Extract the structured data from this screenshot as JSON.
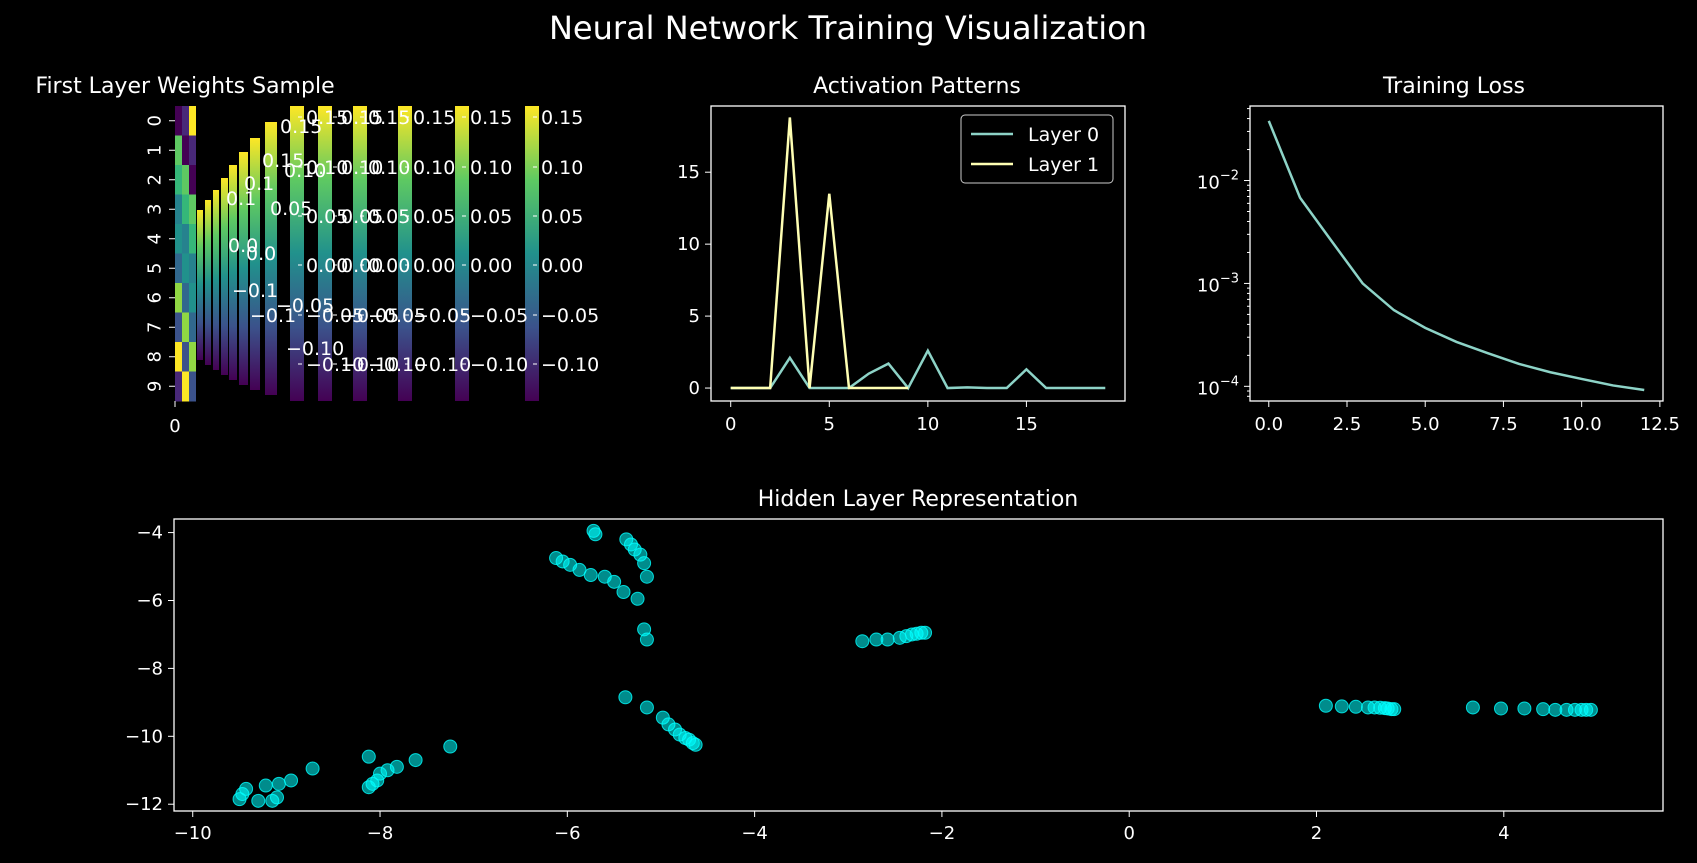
{
  "figure": {
    "title": "Neural Network Training Visualization"
  },
  "chart_data": [
    {
      "type": "heatmap",
      "title": "First Layer Weights Sample",
      "xlabel": "",
      "ylabel": "",
      "y_ticks": [
        "0",
        "1",
        "2",
        "3",
        "4",
        "5",
        "6",
        "7",
        "8",
        "9"
      ],
      "x_ticks": [
        "0"
      ],
      "colormap": "viridis",
      "colorbar_ticks": [
        "0.15",
        "0.10",
        "0.05",
        "0.00",
        "−0.05",
        "−0.10"
      ]
    },
    {
      "type": "line",
      "title": "Activation Patterns",
      "xlabel": "",
      "ylabel": "",
      "xlim": [
        -1,
        20
      ],
      "ylim": [
        -0.9,
        19.6
      ],
      "x_ticks": [
        0,
        5,
        10,
        15
      ],
      "y_ticks": [
        0,
        5,
        10,
        15
      ],
      "legend": "top-right",
      "series": [
        {
          "name": "Layer 0",
          "color": "#8dd3c7",
          "x": [
            0,
            1,
            2,
            3,
            4,
            5,
            6,
            7,
            8,
            9,
            10,
            11,
            12,
            13,
            14,
            15,
            16,
            17,
            18,
            19
          ],
          "values": [
            0,
            0,
            0,
            2.1,
            0,
            0,
            0,
            1.0,
            1.7,
            0,
            2.6,
            0,
            0.05,
            0,
            0,
            1.3,
            0,
            0,
            0,
            0
          ]
        },
        {
          "name": "Layer 1",
          "color": "#ffffb3",
          "x": [
            0,
            1,
            2,
            3,
            4,
            5,
            6,
            7,
            8,
            9
          ],
          "values": [
            0,
            0,
            0,
            18.8,
            0,
            13.5,
            0,
            0,
            0,
            0
          ]
        }
      ]
    },
    {
      "type": "line",
      "title": "Training Loss",
      "xlabel": "",
      "ylabel": "",
      "y_scale": "log",
      "xlim": [
        -0.6,
        12.6
      ],
      "x_ticks": [
        "0.0",
        "2.5",
        "5.0",
        "7.5",
        "10.0",
        "12.5"
      ],
      "y_ticks": [
        {
          "value": 0.01,
          "base": "10",
          "exp": "−2"
        },
        {
          "value": 0.001,
          "base": "10",
          "exp": "−3"
        },
        {
          "value": 0.0001,
          "base": "10",
          "exp": "−4"
        }
      ],
      "series": [
        {
          "name": "",
          "color": "#8dd3c7",
          "x": [
            0,
            1,
            2,
            3,
            4,
            5,
            6,
            7,
            8,
            9,
            10,
            11,
            12
          ],
          "values": [
            0.038,
            0.0068,
            0.0026,
            0.001,
            0.00055,
            0.00037,
            0.00027,
            0.00021,
            0.000165,
            0.000137,
            0.000118,
            0.000102,
            9.2e-05
          ]
        }
      ]
    },
    {
      "type": "scatter",
      "title": "Hidden Layer Representation",
      "xlabel": "",
      "ylabel": "",
      "xlim": [
        -10.2,
        5.7
      ],
      "ylim": [
        -12.2,
        -3.6
      ],
      "x_ticks": [
        "−10",
        "−8",
        "−6",
        "−4",
        "−2",
        "0",
        "2",
        "4"
      ],
      "y_ticks": [
        "−4",
        "−6",
        "−8",
        "−10",
        "−12"
      ],
      "color": "#00ffff",
      "points": [
        [
          -9.5,
          -11.85
        ],
        [
          -9.47,
          -11.7
        ],
        [
          -9.43,
          -11.55
        ],
        [
          -9.3,
          -11.9
        ],
        [
          -9.22,
          -11.45
        ],
        [
          -9.15,
          -11.9
        ],
        [
          -9.1,
          -11.8
        ],
        [
          -9.08,
          -11.4
        ],
        [
          -8.95,
          -11.3
        ],
        [
          -8.72,
          -10.95
        ],
        [
          -8.12,
          -11.5
        ],
        [
          -8.08,
          -11.4
        ],
        [
          -8.03,
          -11.3
        ],
        [
          -8.0,
          -11.1
        ],
        [
          -7.92,
          -11.0
        ],
        [
          -7.82,
          -10.9
        ],
        [
          -7.62,
          -10.7
        ],
        [
          -7.25,
          -10.3
        ],
        [
          -8.12,
          -10.6
        ],
        [
          -6.12,
          -4.75
        ],
        [
          -6.05,
          -4.85
        ],
        [
          -5.97,
          -4.95
        ],
        [
          -5.87,
          -5.1
        ],
        [
          -5.75,
          -5.25
        ],
        [
          -5.6,
          -5.3
        ],
        [
          -5.5,
          -5.45
        ],
        [
          -5.4,
          -5.75
        ],
        [
          -5.25,
          -5.95
        ],
        [
          -5.72,
          -3.95
        ],
        [
          -5.7,
          -4.05
        ],
        [
          -5.37,
          -4.2
        ],
        [
          -5.32,
          -4.35
        ],
        [
          -5.28,
          -4.5
        ],
        [
          -5.22,
          -4.65
        ],
        [
          -5.18,
          -4.9
        ],
        [
          -5.15,
          -5.3
        ],
        [
          -5.18,
          -6.85
        ],
        [
          -5.15,
          -7.15
        ],
        [
          -5.38,
          -8.85
        ],
        [
          -5.15,
          -9.15
        ],
        [
          -4.98,
          -9.45
        ],
        [
          -4.92,
          -9.65
        ],
        [
          -4.85,
          -9.8
        ],
        [
          -4.8,
          -9.95
        ],
        [
          -4.74,
          -10.05
        ],
        [
          -4.7,
          -10.1
        ],
        [
          -4.66,
          -10.2
        ],
        [
          -4.63,
          -10.25
        ],
        [
          -2.85,
          -7.2
        ],
        [
          -2.7,
          -7.15
        ],
        [
          -2.58,
          -7.15
        ],
        [
          -2.45,
          -7.1
        ],
        [
          -2.38,
          -7.05
        ],
        [
          -2.32,
          -7.0
        ],
        [
          -2.27,
          -6.98
        ],
        [
          -2.22,
          -6.95
        ],
        [
          -2.18,
          -6.95
        ],
        [
          2.1,
          -9.1
        ],
        [
          2.27,
          -9.12
        ],
        [
          2.42,
          -9.13
        ],
        [
          2.55,
          -9.15
        ],
        [
          2.62,
          -9.15
        ],
        [
          2.68,
          -9.16
        ],
        [
          2.73,
          -9.17
        ],
        [
          2.76,
          -9.18
        ],
        [
          2.8,
          -9.2
        ],
        [
          2.83,
          -9.2
        ],
        [
          3.67,
          -9.15
        ],
        [
          3.97,
          -9.18
        ],
        [
          4.22,
          -9.18
        ],
        [
          4.42,
          -9.2
        ],
        [
          4.55,
          -9.22
        ],
        [
          4.67,
          -9.22
        ],
        [
          4.76,
          -9.22
        ],
        [
          4.83,
          -9.22
        ],
        [
          4.88,
          -9.22
        ],
        [
          4.93,
          -9.22
        ]
      ]
    }
  ]
}
